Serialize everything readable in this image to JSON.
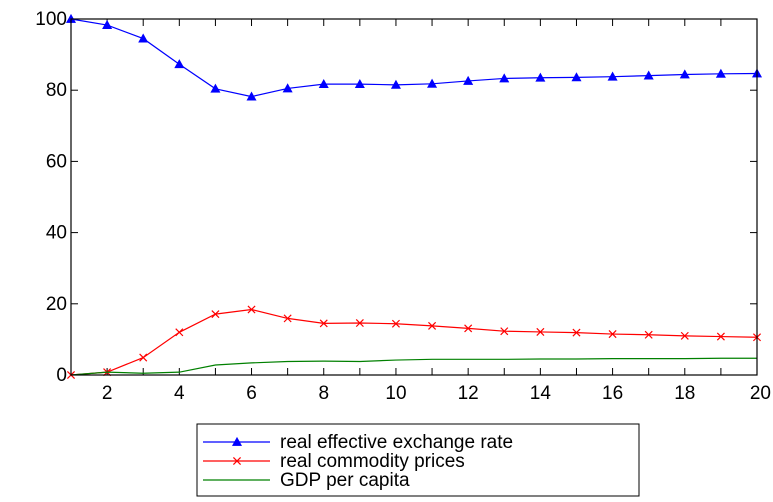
{
  "chart_data": {
    "type": "line",
    "title": "",
    "xlabel": "",
    "ylabel": "",
    "x": [
      1,
      2,
      3,
      4,
      5,
      6,
      7,
      8,
      9,
      10,
      11,
      12,
      13,
      14,
      15,
      16,
      17,
      18,
      19,
      20
    ],
    "xlim": [
      1,
      20
    ],
    "ylim": [
      0,
      100
    ],
    "x_ticks": [
      "2",
      "4",
      "6",
      "8",
      "10",
      "12",
      "14",
      "16",
      "18",
      "20"
    ],
    "y_ticks": [
      "0",
      "20",
      "40",
      "60",
      "80",
      "100"
    ],
    "grid": false,
    "legend_position": "bottom-center",
    "series": [
      {
        "name": "real effective exchange rate",
        "color": "#0000ff",
        "marker": "triangle",
        "values": [
          100,
          98.3,
          94.5,
          87.3,
          80.4,
          78.2,
          80.5,
          81.7,
          81.7,
          81.5,
          81.8,
          82.6,
          83.3,
          83.5,
          83.6,
          83.8,
          84.1,
          84.4,
          84.6,
          84.7
        ]
      },
      {
        "name": "real commodity prices",
        "color": "#ff0000",
        "marker": "x",
        "values": [
          0,
          0.8,
          4.9,
          12.0,
          17.1,
          18.4,
          15.9,
          14.5,
          14.6,
          14.4,
          13.8,
          13.1,
          12.3,
          12.1,
          11.9,
          11.5,
          11.3,
          11.0,
          10.8,
          10.6
        ]
      },
      {
        "name": "GDP per capita",
        "color": "#008000",
        "marker": "none",
        "values": [
          0,
          0.8,
          0.5,
          0.8,
          2.8,
          3.4,
          3.8,
          3.9,
          3.8,
          4.2,
          4.4,
          4.4,
          4.4,
          4.5,
          4.5,
          4.6,
          4.6,
          4.6,
          4.7,
          4.7
        ]
      }
    ]
  }
}
